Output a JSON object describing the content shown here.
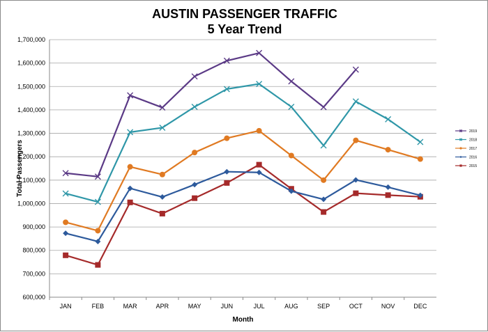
{
  "chart_data": {
    "type": "line",
    "title": "AUSTIN PASSENGER TRAFFIC",
    "subtitle": "5 Year Trend",
    "xlabel": "Month",
    "ylabel": "Total Passengers",
    "categories": [
      "JAN",
      "FEB",
      "MAR",
      "APR",
      "MAY",
      "JUN",
      "JUL",
      "AUG",
      "SEP",
      "OCT",
      "NOV",
      "DEC"
    ],
    "ylim": [
      600000,
      1700000
    ],
    "yticks": [
      600000,
      700000,
      800000,
      900000,
      1000000,
      1100000,
      1200000,
      1300000,
      1400000,
      1500000,
      1600000,
      1700000
    ],
    "ytick_labels": [
      "600,000",
      "700,000",
      "800,000",
      "900,000",
      "1,000,000",
      "1,100,000",
      "1,200,000",
      "1,300,000",
      "1,400,000",
      "1,500,000",
      "1,600,000",
      "1,700,000"
    ],
    "grid": true,
    "legend_position": "right",
    "series": [
      {
        "name": "2019",
        "color": "#5b3a86",
        "marker": "x",
        "values": [
          1130000,
          1115000,
          1462000,
          1410000,
          1543000,
          1610000,
          1643000,
          1522000,
          1412000,
          1572000,
          null,
          null
        ]
      },
      {
        "name": "2018",
        "color": "#2f97a8",
        "marker": "x",
        "values": [
          1043000,
          1007000,
          1305000,
          1324000,
          1413000,
          1489000,
          1511000,
          1413000,
          1248000,
          1436000,
          1360000,
          1263000
        ]
      },
      {
        "name": "2017",
        "color": "#e07a22",
        "marker": "circle",
        "values": [
          920000,
          884000,
          1157000,
          1124000,
          1218000,
          1279000,
          1311000,
          1205000,
          1100000,
          1270000,
          1230000,
          1190000
        ]
      },
      {
        "name": "2016",
        "color": "#2d5a9c",
        "marker": "diamond",
        "values": [
          873000,
          838000,
          1065000,
          1028000,
          1081000,
          1136000,
          1133000,
          1053000,
          1018000,
          1101000,
          1070000,
          1035000
        ]
      },
      {
        "name": "2015",
        "color": "#a52a2a",
        "marker": "square",
        "values": [
          779000,
          738000,
          1005000,
          957000,
          1023000,
          1088000,
          1166000,
          1063000,
          964000,
          1044000,
          1036000,
          1029000
        ]
      }
    ]
  }
}
